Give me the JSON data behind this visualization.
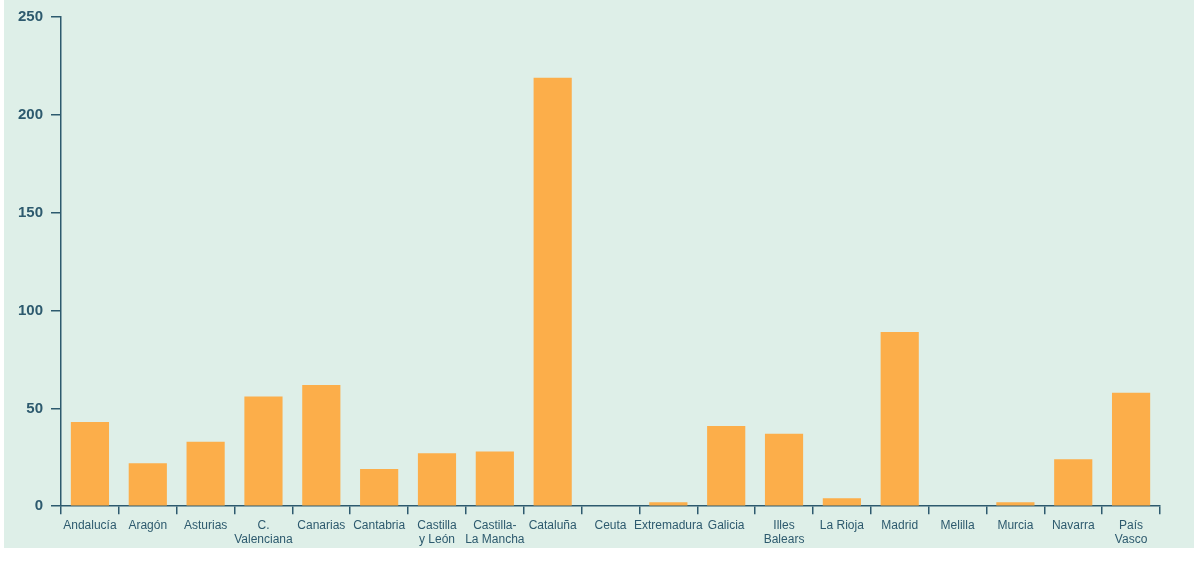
{
  "chart_data": {
    "type": "bar",
    "categories": [
      "Andalucía",
      "Aragón",
      "Asturias",
      "C.\nValenciana",
      "Canarias",
      "Cantabria",
      "Castilla\ny León",
      "Castilla-\nLa Mancha",
      "Cataluña",
      "Ceuta",
      "Extremadura",
      "Galicia",
      "Illes\nBalears",
      "La Rioja",
      "Madrid",
      "Melilla",
      "Murcia",
      "Navarra",
      "País\nVasco"
    ],
    "values": [
      43,
      22,
      33,
      56,
      62,
      19,
      27,
      28,
      219,
      0,
      2,
      41,
      37,
      4,
      89,
      0,
      2,
      24,
      58
    ],
    "color": "#fcae4a",
    "ylim": [
      0,
      250
    ],
    "yticks": [
      0,
      50,
      100,
      150,
      200,
      250
    ],
    "grid": false
  }
}
